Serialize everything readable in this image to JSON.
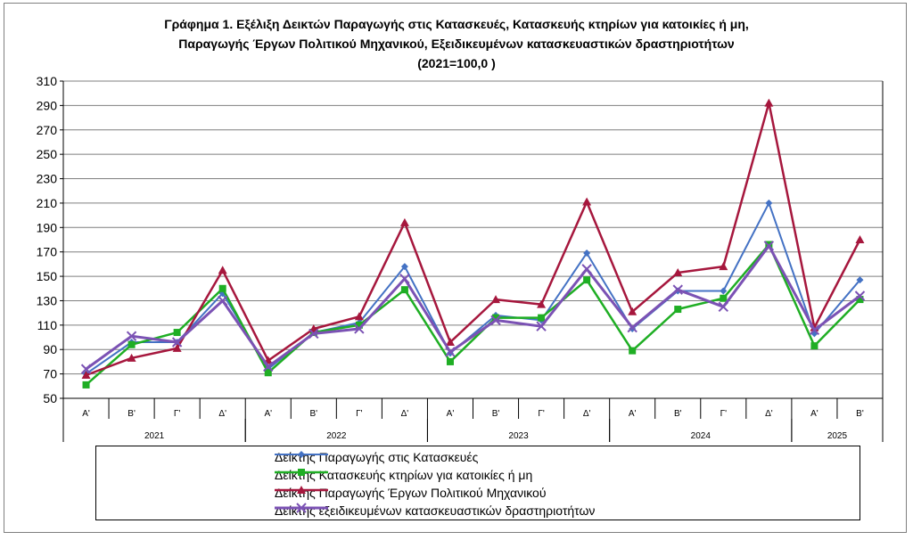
{
  "chart_data": {
    "type": "line",
    "title_lines": [
      "Γράφημα 1. Εξέλιξη  Δεικτών Παραγωγής στις Κατασκευές,  Κατασκευής κτηρίων για κατοικίες ή  μη,",
      "Παραγωγής  Έργων Πολιτικού Μηχανικού,  Εξειδικευμένων κατασκευαστικών δραστηριοτήτων",
      "(2021=100,0 )"
    ],
    "ylim": [
      50,
      310
    ],
    "yticks": [
      "50",
      "70",
      "90",
      "110",
      "130",
      "150",
      "170",
      "190",
      "210",
      "230",
      "250",
      "270",
      "290",
      "310"
    ],
    "grid": true,
    "categories": [
      "Α'",
      "Β'",
      "Γ'",
      "Δ'",
      "Α'",
      "Β'",
      "Γ'",
      "Δ'",
      "Α'",
      "Β'",
      "Γ'",
      "Δ'",
      "Α'",
      "Β'",
      "Γ'",
      "Δ'",
      "Α'",
      "Β'"
    ],
    "years": [
      {
        "label": "2021",
        "start": 0,
        "count": 4
      },
      {
        "label": "2022",
        "start": 4,
        "count": 4
      },
      {
        "label": "2023",
        "start": 8,
        "count": 4
      },
      {
        "label": "2024",
        "start": 12,
        "count": 4
      },
      {
        "label": "2025",
        "start": 16,
        "count": 2
      }
    ],
    "legend_position": "bottom",
    "series": [
      {
        "name": "Δείκτης Παραγωγής στις Κατασκευές",
        "color": "#4472c4",
        "marker": "diamond",
        "values": [
          70,
          96,
          96,
          136,
          74,
          104,
          112,
          158,
          87,
          118,
          114,
          169,
          107,
          138,
          138,
          210,
          103,
          147
        ]
      },
      {
        "name": "Δείκτης Κατασκευής κτηρίων για κατοικίες ή μη",
        "color": "#1fae24",
        "marker": "square",
        "values": [
          61,
          94,
          104,
          140,
          71,
          104,
          110,
          139,
          80,
          116,
          116,
          147,
          89,
          123,
          132,
          176,
          93,
          131
        ]
      },
      {
        "name": "Δείκτης Παραγωγής Έργων Πολιτικού Μηχανικού",
        "color": "#a6173d",
        "marker": "triangle",
        "values": [
          69,
          83,
          91,
          155,
          81,
          107,
          117,
          194,
          96,
          131,
          127,
          211,
          121,
          153,
          158,
          292,
          108,
          180
        ]
      },
      {
        "name": "Δείκτης εξειδικευμένων κατασκευαστικών δραστηριοτήτων",
        "color": "#7b52b4",
        "marker": "x",
        "values": [
          74,
          101,
          96,
          130,
          76,
          103,
          107,
          148,
          88,
          114,
          109,
          156,
          108,
          139,
          125,
          175,
          106,
          134
        ]
      }
    ]
  }
}
